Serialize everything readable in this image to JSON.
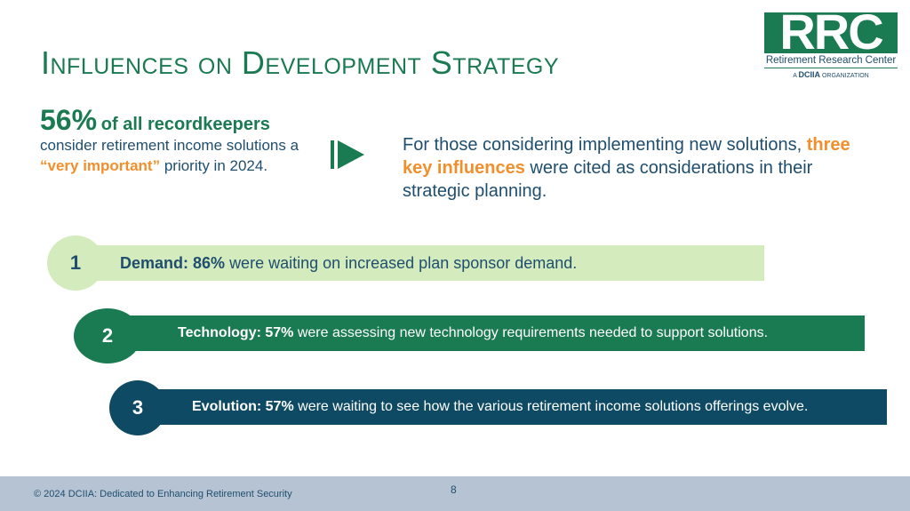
{
  "slide": {
    "title": "Influences on Development Strategy"
  },
  "logo": {
    "letters": "RRC",
    "name": "Retirement Research Center",
    "org_prefix": "A",
    "org_name": "DCIIA",
    "org_suffix": "ORGANIZATION"
  },
  "stat": {
    "percent": "56%",
    "lead": "of all recordkeepers",
    "line_a": "consider retirement income solutions a",
    "highlight": "“very important”",
    "line_b": "priority in 2024."
  },
  "intro": {
    "part1": "For those considering implementing new solutions,",
    "highlight": "three key influences",
    "part2": "were cited as considerations in their strategic planning."
  },
  "influences": [
    {
      "number": "1",
      "label": "Demand: 86%",
      "text": "were waiting on increased plan sponsor demand."
    },
    {
      "number": "2",
      "label": "Technology: 57%",
      "text": "were assessing new technology requirements needed to support solutions."
    },
    {
      "number": "3",
      "label": "Evolution: 57%",
      "text": "were waiting to see how the various retirement income solutions offerings evolve."
    }
  ],
  "footer": {
    "copyright": "© 2024 DCIIA: Dedicated to Enhancing Retirement Security",
    "page_number": "8"
  },
  "colors": {
    "green": "#1a7a52",
    "light_green": "#d4ebbd",
    "navy": "#0e4a63",
    "text_blue": "#1f4e6e",
    "orange": "#f28f2d",
    "footer": "#b5c3d3"
  }
}
